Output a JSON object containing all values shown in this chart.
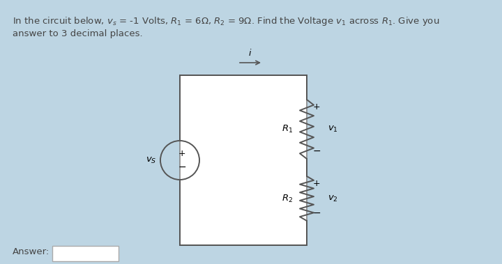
{
  "bg_color": "#bdd5e3",
  "circuit_bg": "#ffffff",
  "text_color": "#444444",
  "wire_color": "#555555",
  "font_size_title": 9.5,
  "font_size_circuit": 9,
  "title_line1": "In the circuit below, vₛ = -1 Volts, R₁ = 6Ω, R₂ = 9Ω. Find the Voltage v₁ across R₁. Give you",
  "title_line2": "answer to 3 decimal places.",
  "answer_label": "Answer:"
}
